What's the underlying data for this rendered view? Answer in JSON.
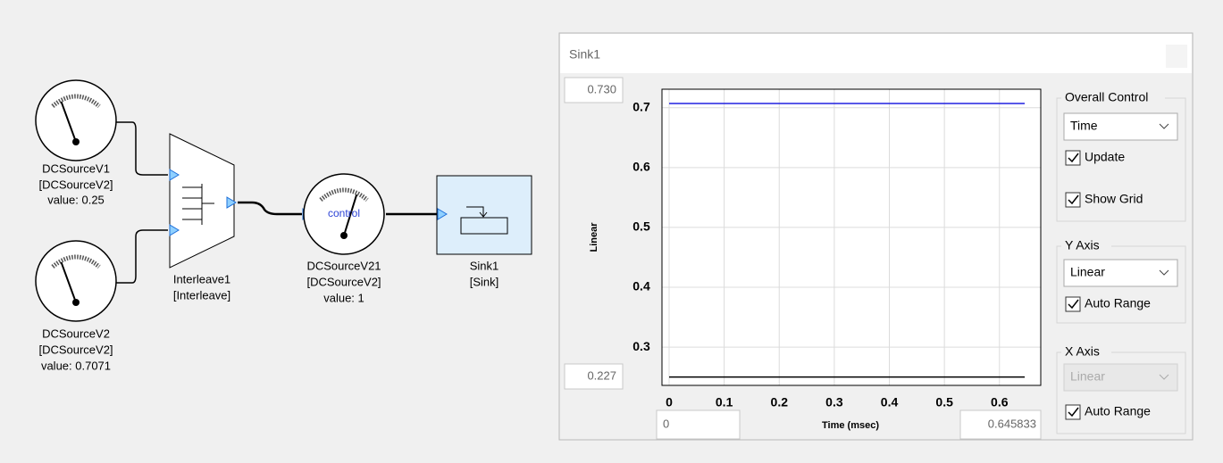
{
  "diagram": {
    "blocks": [
      {
        "name": "DCSourceV1",
        "kind": "[DCSourceV2]",
        "value_label": "value: 0.25"
      },
      {
        "name": "DCSourceV2",
        "kind": "[DCSourceV2]",
        "value_label": "value: 0.7071"
      },
      {
        "name": "Interleave1",
        "kind": "[Interleave]"
      },
      {
        "name": "DCSourceV21",
        "kind": "[DCSourceV2]",
        "value_label": "value: 1",
        "port_label": "control"
      },
      {
        "name": "Sink1",
        "kind": "[Sink]"
      }
    ]
  },
  "window": {
    "title": "Sink1",
    "y_max_box": "0.730",
    "y_min_box": "0.227",
    "x_min_box": "0",
    "x_max_box": "0.645833",
    "overall_control": {
      "title": "Overall Control",
      "mode": "Time",
      "update": "Update",
      "show_grid": "Show Grid"
    },
    "y_axis": {
      "title": "Y Axis",
      "scale": "Linear",
      "auto_range": "Auto Range"
    },
    "x_axis": {
      "title": "X Axis",
      "scale": "Linear",
      "auto_range": "Auto Range"
    }
  },
  "chart_data": {
    "type": "line",
    "y_label": "Linear",
    "x_label": "Time (msec)",
    "x": [
      0,
      0.645833
    ],
    "series": [
      {
        "color": "#2020e0",
        "values": [
          0.7071,
          0.7071
        ]
      },
      {
        "color": "#000000",
        "values": [
          0.25,
          0.25
        ]
      }
    ],
    "xlim": [
      -0.013,
      0.675
    ],
    "ylim": [
      0.236,
      0.731
    ],
    "xticks": [
      0,
      0.1,
      0.2,
      0.3,
      0.4,
      0.5,
      0.6
    ],
    "yticks": [
      0.3,
      0.4,
      0.5,
      0.6,
      0.7
    ],
    "grid": true
  }
}
